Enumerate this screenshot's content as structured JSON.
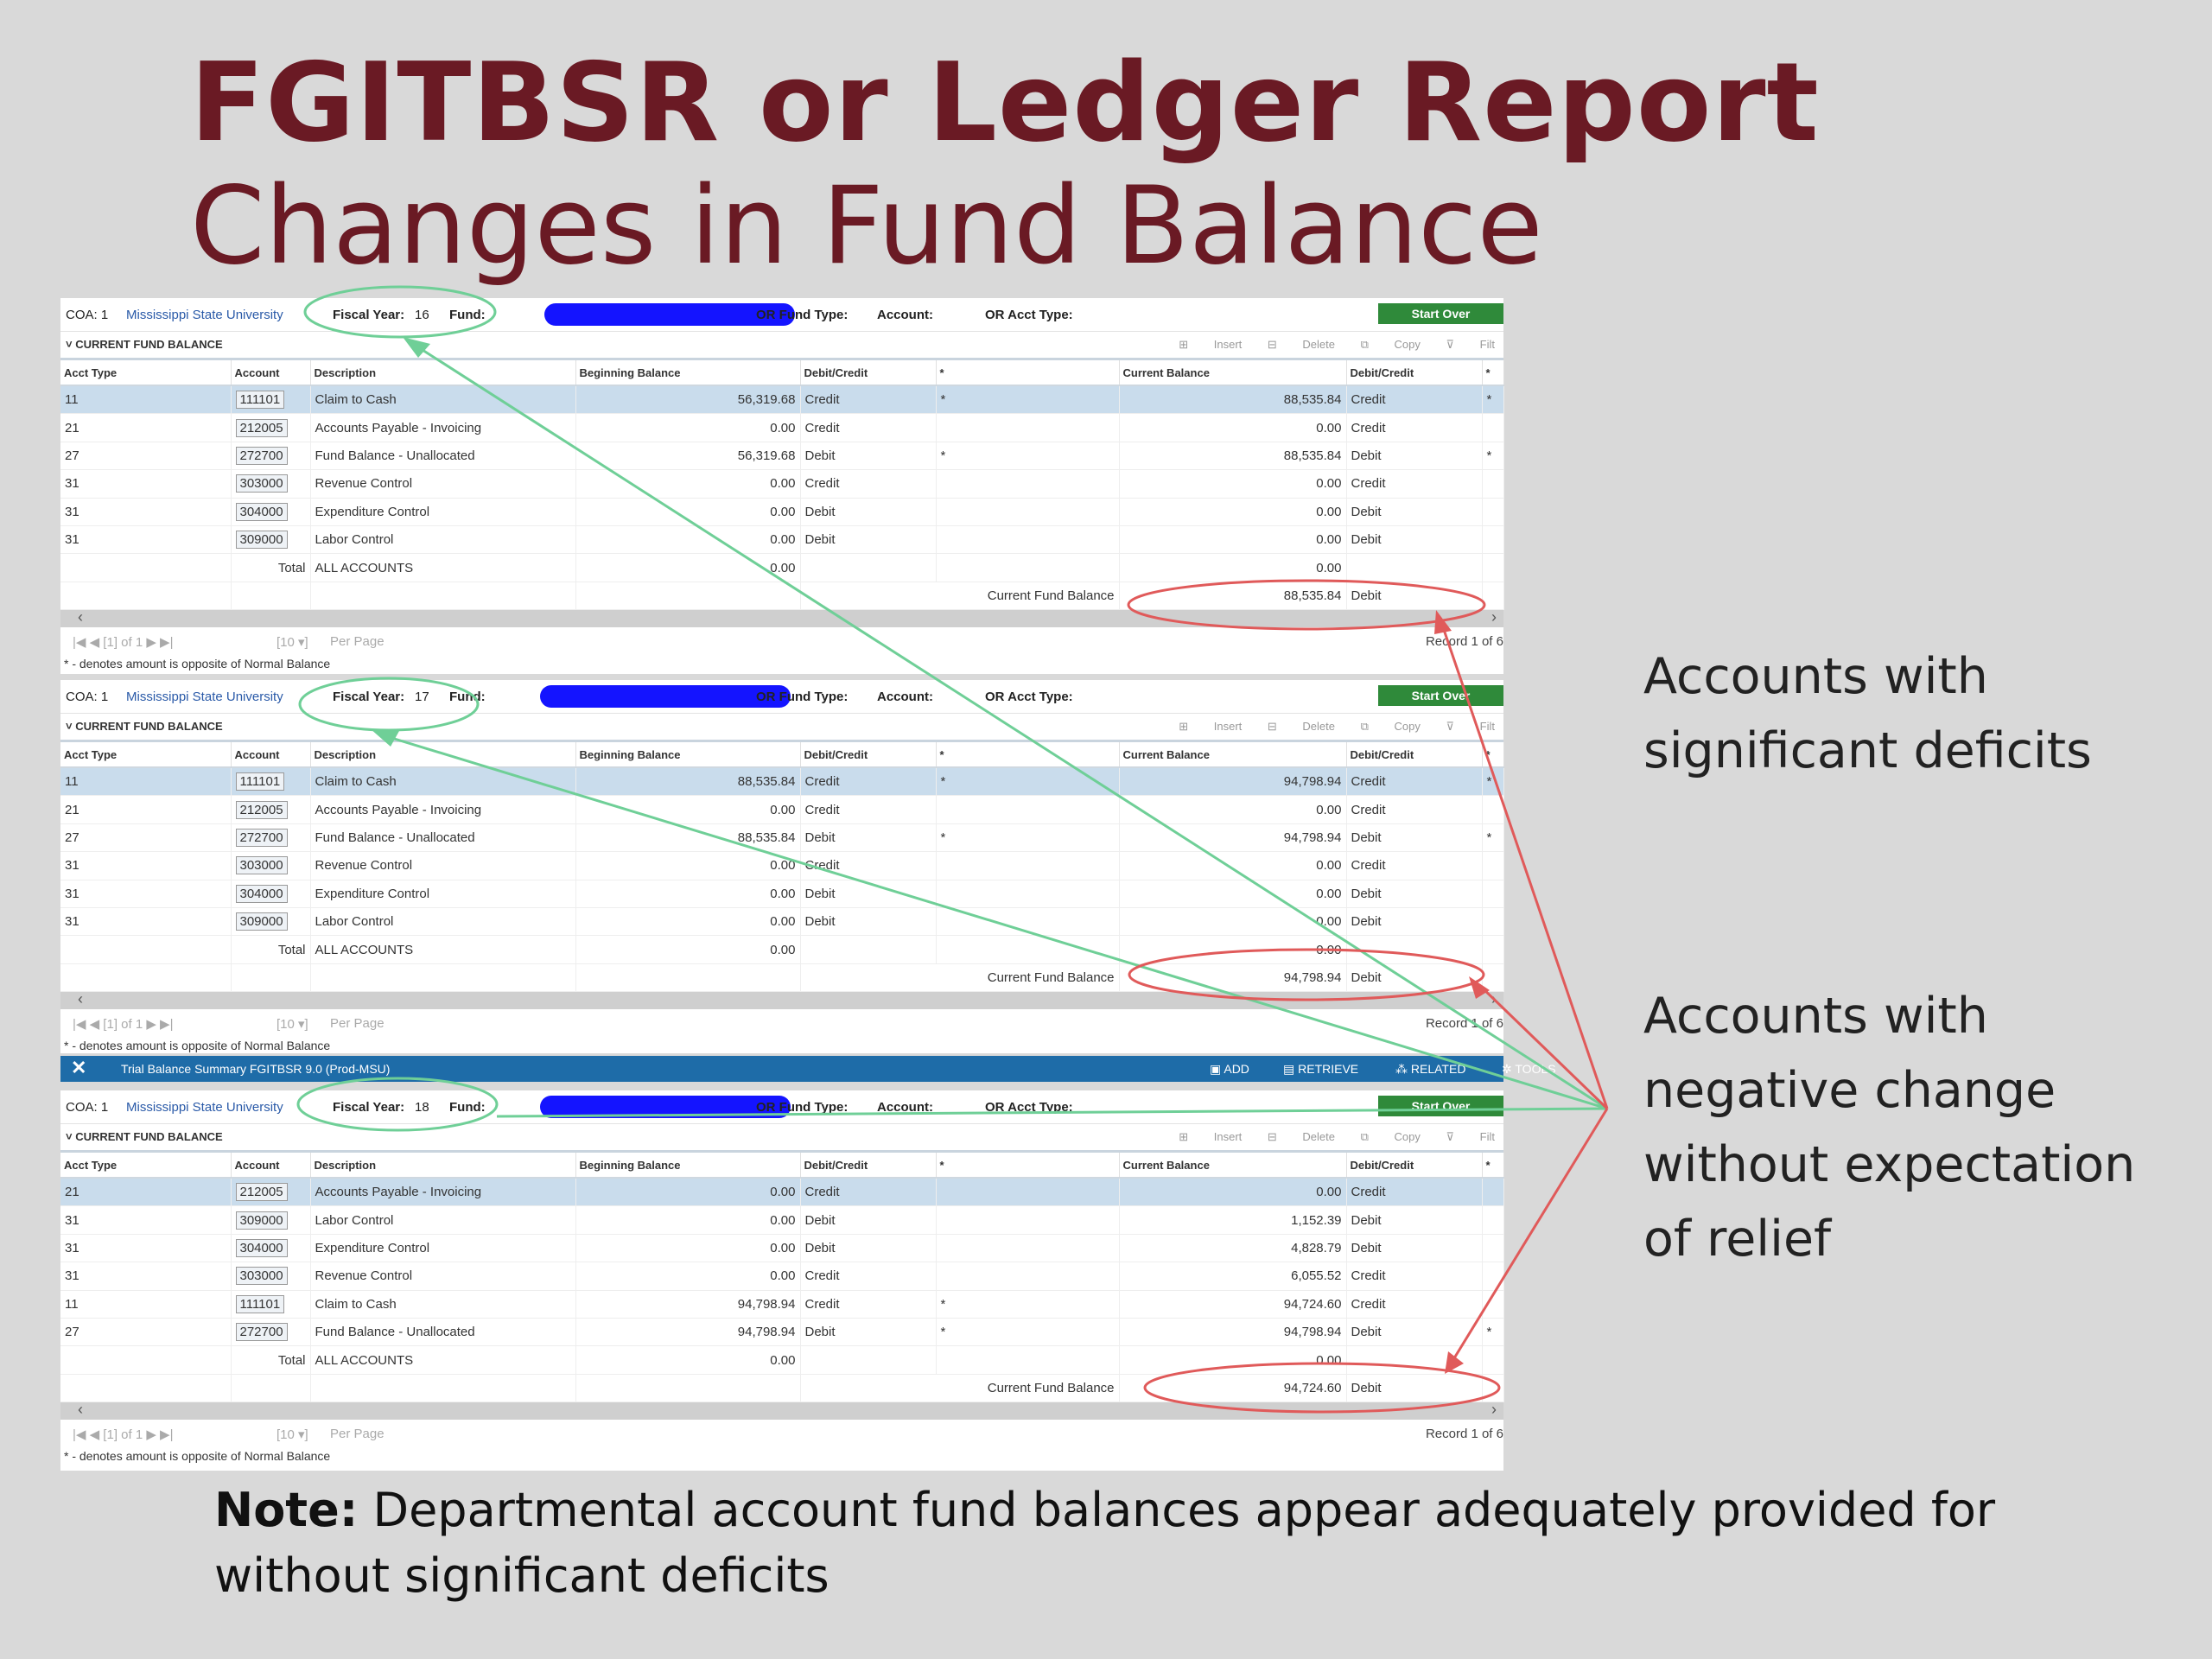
{
  "title": {
    "line1": "FGITBSR or Ledger Report",
    "line2": "Changes in Fund Balance"
  },
  "colors": {
    "title": "#6a1a24",
    "start_over": "#2f8a3a",
    "selected_row": "#c9dcec",
    "blue_bar": "#1e6ca8",
    "green_annotation": "#6fcf97",
    "red_annotation": "#e05a5a"
  },
  "header": {
    "coa_label": "COA: 1",
    "org": "Mississippi State University",
    "fund_label": "Fund:",
    "or_fund_type": "OR Fund Type:",
    "account": "Account:",
    "or_acct_type": "OR Acct Type:",
    "start_over": "Start Over"
  },
  "section": {
    "label": "CURRENT FUND BALANCE",
    "insert": "Insert",
    "delete": "Delete",
    "copy": "Copy",
    "filter": "Filt"
  },
  "columns": {
    "acct_type": "Acct Type",
    "account": "Account",
    "description": "Description",
    "beginning_balance": "Beginning Balance",
    "debit_credit": "Debit/Credit",
    "star": "*",
    "current_balance": "Current Balance",
    "debit_credit2": "Debit/Credit",
    "star2": "*"
  },
  "footer": {
    "current_fund_balance_label": "Current Fund Balance",
    "per_page": "Per Page",
    "page_info": "of 1",
    "page_size": "10",
    "note": "* - denotes amount is opposite of Normal Balance"
  },
  "panels": [
    {
      "fiscal_year_label": "Fiscal Year:",
      "fiscal_year": "16",
      "record": "Record 1 of 6",
      "rows": [
        {
          "t": "11",
          "a": "111101",
          "d": "Claim to Cash",
          "b": "56,319.68",
          "bc": "Credit",
          "s": "*",
          "c": "88,535.84",
          "cc": "Credit",
          "s2": "*"
        },
        {
          "t": "21",
          "a": "212005",
          "d": "Accounts Payable - Invoicing",
          "b": "0.00",
          "bc": "Credit",
          "s": "",
          "c": "0.00",
          "cc": "Credit",
          "s2": ""
        },
        {
          "t": "27",
          "a": "272700",
          "d": "Fund Balance - Unallocated",
          "b": "56,319.68",
          "bc": "Debit",
          "s": "*",
          "c": "88,535.84",
          "cc": "Debit",
          "s2": "*"
        },
        {
          "t": "31",
          "a": "303000",
          "d": "Revenue Control",
          "b": "0.00",
          "bc": "Credit",
          "s": "",
          "c": "0.00",
          "cc": "Credit",
          "s2": ""
        },
        {
          "t": "31",
          "a": "304000",
          "d": "Expenditure Control",
          "b": "0.00",
          "bc": "Debit",
          "s": "",
          "c": "0.00",
          "cc": "Debit",
          "s2": ""
        },
        {
          "t": "31",
          "a": "309000",
          "d": "Labor Control",
          "b": "0.00",
          "bc": "Debit",
          "s": "",
          "c": "0.00",
          "cc": "Debit",
          "s2": ""
        }
      ],
      "total_label": "Total",
      "total_desc": "ALL ACCOUNTS",
      "total_begin": "0.00",
      "total_current": "0.00",
      "fund_balance": "88,535.84",
      "fund_balance_dc": "Debit"
    },
    {
      "fiscal_year_label": "Fiscal Year:",
      "fiscal_year": "17",
      "record": "Record 1 of 6",
      "rows": [
        {
          "t": "11",
          "a": "111101",
          "d": "Claim to Cash",
          "b": "88,535.84",
          "bc": "Credit",
          "s": "*",
          "c": "94,798.94",
          "cc": "Credit",
          "s2": "*"
        },
        {
          "t": "21",
          "a": "212005",
          "d": "Accounts Payable - Invoicing",
          "b": "0.00",
          "bc": "Credit",
          "s": "",
          "c": "0.00",
          "cc": "Credit",
          "s2": ""
        },
        {
          "t": "27",
          "a": "272700",
          "d": "Fund Balance - Unallocated",
          "b": "88,535.84",
          "bc": "Debit",
          "s": "*",
          "c": "94,798.94",
          "cc": "Debit",
          "s2": "*"
        },
        {
          "t": "31",
          "a": "303000",
          "d": "Revenue Control",
          "b": "0.00",
          "bc": "Credit",
          "s": "",
          "c": "0.00",
          "cc": "Credit",
          "s2": ""
        },
        {
          "t": "31",
          "a": "304000",
          "d": "Expenditure Control",
          "b": "0.00",
          "bc": "Debit",
          "s": "",
          "c": "0.00",
          "cc": "Debit",
          "s2": ""
        },
        {
          "t": "31",
          "a": "309000",
          "d": "Labor Control",
          "b": "0.00",
          "bc": "Debit",
          "s": "",
          "c": "0.00",
          "cc": "Debit",
          "s2": ""
        }
      ],
      "total_label": "Total",
      "total_desc": "ALL ACCOUNTS",
      "total_begin": "0.00",
      "total_current": "0.00",
      "fund_balance": "94,798.94",
      "fund_balance_dc": "Debit"
    },
    {
      "fiscal_year_label": "Fiscal Year:",
      "fiscal_year": "18",
      "record": "Record 1 of 6",
      "rows": [
        {
          "t": "21",
          "a": "212005",
          "d": "Accounts Payable - Invoicing",
          "b": "0.00",
          "bc": "Credit",
          "s": "",
          "c": "0.00",
          "cc": "Credit",
          "s2": ""
        },
        {
          "t": "31",
          "a": "309000",
          "d": "Labor Control",
          "b": "0.00",
          "bc": "Debit",
          "s": "",
          "c": "1,152.39",
          "cc": "Debit",
          "s2": ""
        },
        {
          "t": "31",
          "a": "304000",
          "d": "Expenditure Control",
          "b": "0.00",
          "bc": "Debit",
          "s": "",
          "c": "4,828.79",
          "cc": "Debit",
          "s2": ""
        },
        {
          "t": "31",
          "a": "303000",
          "d": "Revenue Control",
          "b": "0.00",
          "bc": "Credit",
          "s": "",
          "c": "6,055.52",
          "cc": "Credit",
          "s2": ""
        },
        {
          "t": "11",
          "a": "111101",
          "d": "Claim to Cash",
          "b": "94,798.94",
          "bc": "Credit",
          "s": "*",
          "c": "94,724.60",
          "cc": "Credit",
          "s2": ""
        },
        {
          "t": "27",
          "a": "272700",
          "d": "Fund Balance - Unallocated",
          "b": "94,798.94",
          "bc": "Debit",
          "s": "*",
          "c": "94,798.94",
          "cc": "Debit",
          "s2": "*"
        }
      ],
      "total_label": "Total",
      "total_desc": "ALL ACCOUNTS",
      "total_begin": "0.00",
      "total_current": "0.00",
      "fund_balance": "94,724.60",
      "fund_balance_dc": "Debit"
    }
  ],
  "toolbar": {
    "close": "✕",
    "title": "Trial Balance Summary FGITBSR 9.0 (Prod-MSU)",
    "add": "ADD",
    "retrieve": "RETRIEVE",
    "related": "RELATED",
    "tools": "TOOLS"
  },
  "annotations": {
    "deficits": [
      "Accounts with",
      "significant deficits"
    ],
    "negative": [
      "Accounts with",
      "negative change",
      "without expectation",
      "of relief"
    ]
  },
  "note": {
    "bold": "Note:",
    "text": " Departmental account fund balances appear adequately provided for without significant deficits"
  }
}
